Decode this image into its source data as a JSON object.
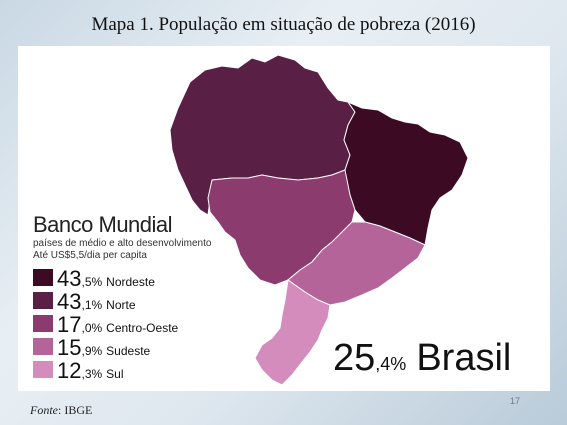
{
  "title": "Mapa 1. População em situação de pobreza (2016)",
  "legend": {
    "heading": "Banco Mundial",
    "subtitle_line1": "países de médio e alto desenvolvimento",
    "subtitle_line2": "Até US$5,5/dia per capita",
    "items": [
      {
        "int": "43",
        "dec": ",5%",
        "region": "Nordeste",
        "color": "#3d0a24"
      },
      {
        "int": "43",
        "dec": ",1%",
        "region": "Norte",
        "color": "#5a1f45"
      },
      {
        "int": "17",
        "dec": ",0%",
        "region": "Centro-Oeste",
        "color": "#8b3b6e"
      },
      {
        "int": "15",
        "dec": ",9%",
        "region": "Sudeste",
        "color": "#b5649a"
      },
      {
        "int": "12",
        "dec": ",3%",
        "region": "Sul",
        "color": "#d48cbc"
      }
    ]
  },
  "brasil": {
    "int": "25",
    "dec": ",4%",
    "label": "Brasil"
  },
  "source_label": "Fonte",
  "source_value": ": IBGE",
  "page_number": "17",
  "map_regions": [
    {
      "name": "Norte",
      "color": "#5a1f45"
    },
    {
      "name": "Nordeste",
      "color": "#3d0a24"
    },
    {
      "name": "Centro-Oeste",
      "color": "#8b3b6e"
    },
    {
      "name": "Sudeste",
      "color": "#b5649a"
    },
    {
      "name": "Sul",
      "color": "#d48cbc"
    }
  ]
}
